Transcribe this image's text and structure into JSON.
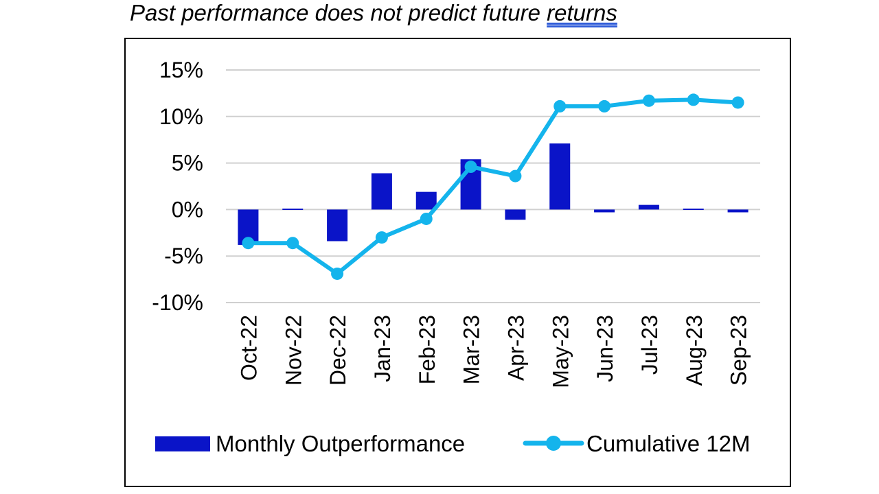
{
  "caption": {
    "prefix": "Past performance does not predict future ",
    "underlined_word": "returns"
  },
  "chart_data": {
    "type": "bar",
    "title": "",
    "xlabel": "",
    "ylabel": "",
    "ylim": [
      -10,
      15
    ],
    "yticks": [
      15,
      10,
      5,
      0,
      -5,
      -10
    ],
    "ytick_labels": [
      "15%",
      "10%",
      "5%",
      "0%",
      "-5%",
      "-10%"
    ],
    "grid": true,
    "legend_position": "bottom",
    "categories": [
      "Oct-22",
      "Nov-22",
      "Dec-22",
      "Jan-23",
      "Feb-23",
      "Mar-23",
      "Apr-23",
      "May-23",
      "Jun-23",
      "Jul-23",
      "Aug-23",
      "Sep-23"
    ],
    "series": [
      {
        "name": "Monthly Outperformance",
        "type": "bar",
        "color": "#0a14c8",
        "values": [
          -3.8,
          0.1,
          -3.4,
          3.9,
          1.9,
          5.4,
          -1.1,
          7.1,
          -0.3,
          0.5,
          0.1,
          -0.3
        ]
      },
      {
        "name": "Cumulative 12M",
        "type": "line",
        "color": "#14b4ec",
        "values": [
          -3.6,
          -3.6,
          -6.9,
          -3.0,
          -1.0,
          4.6,
          3.6,
          11.1,
          11.1,
          11.7,
          11.8,
          11.5
        ]
      }
    ]
  }
}
